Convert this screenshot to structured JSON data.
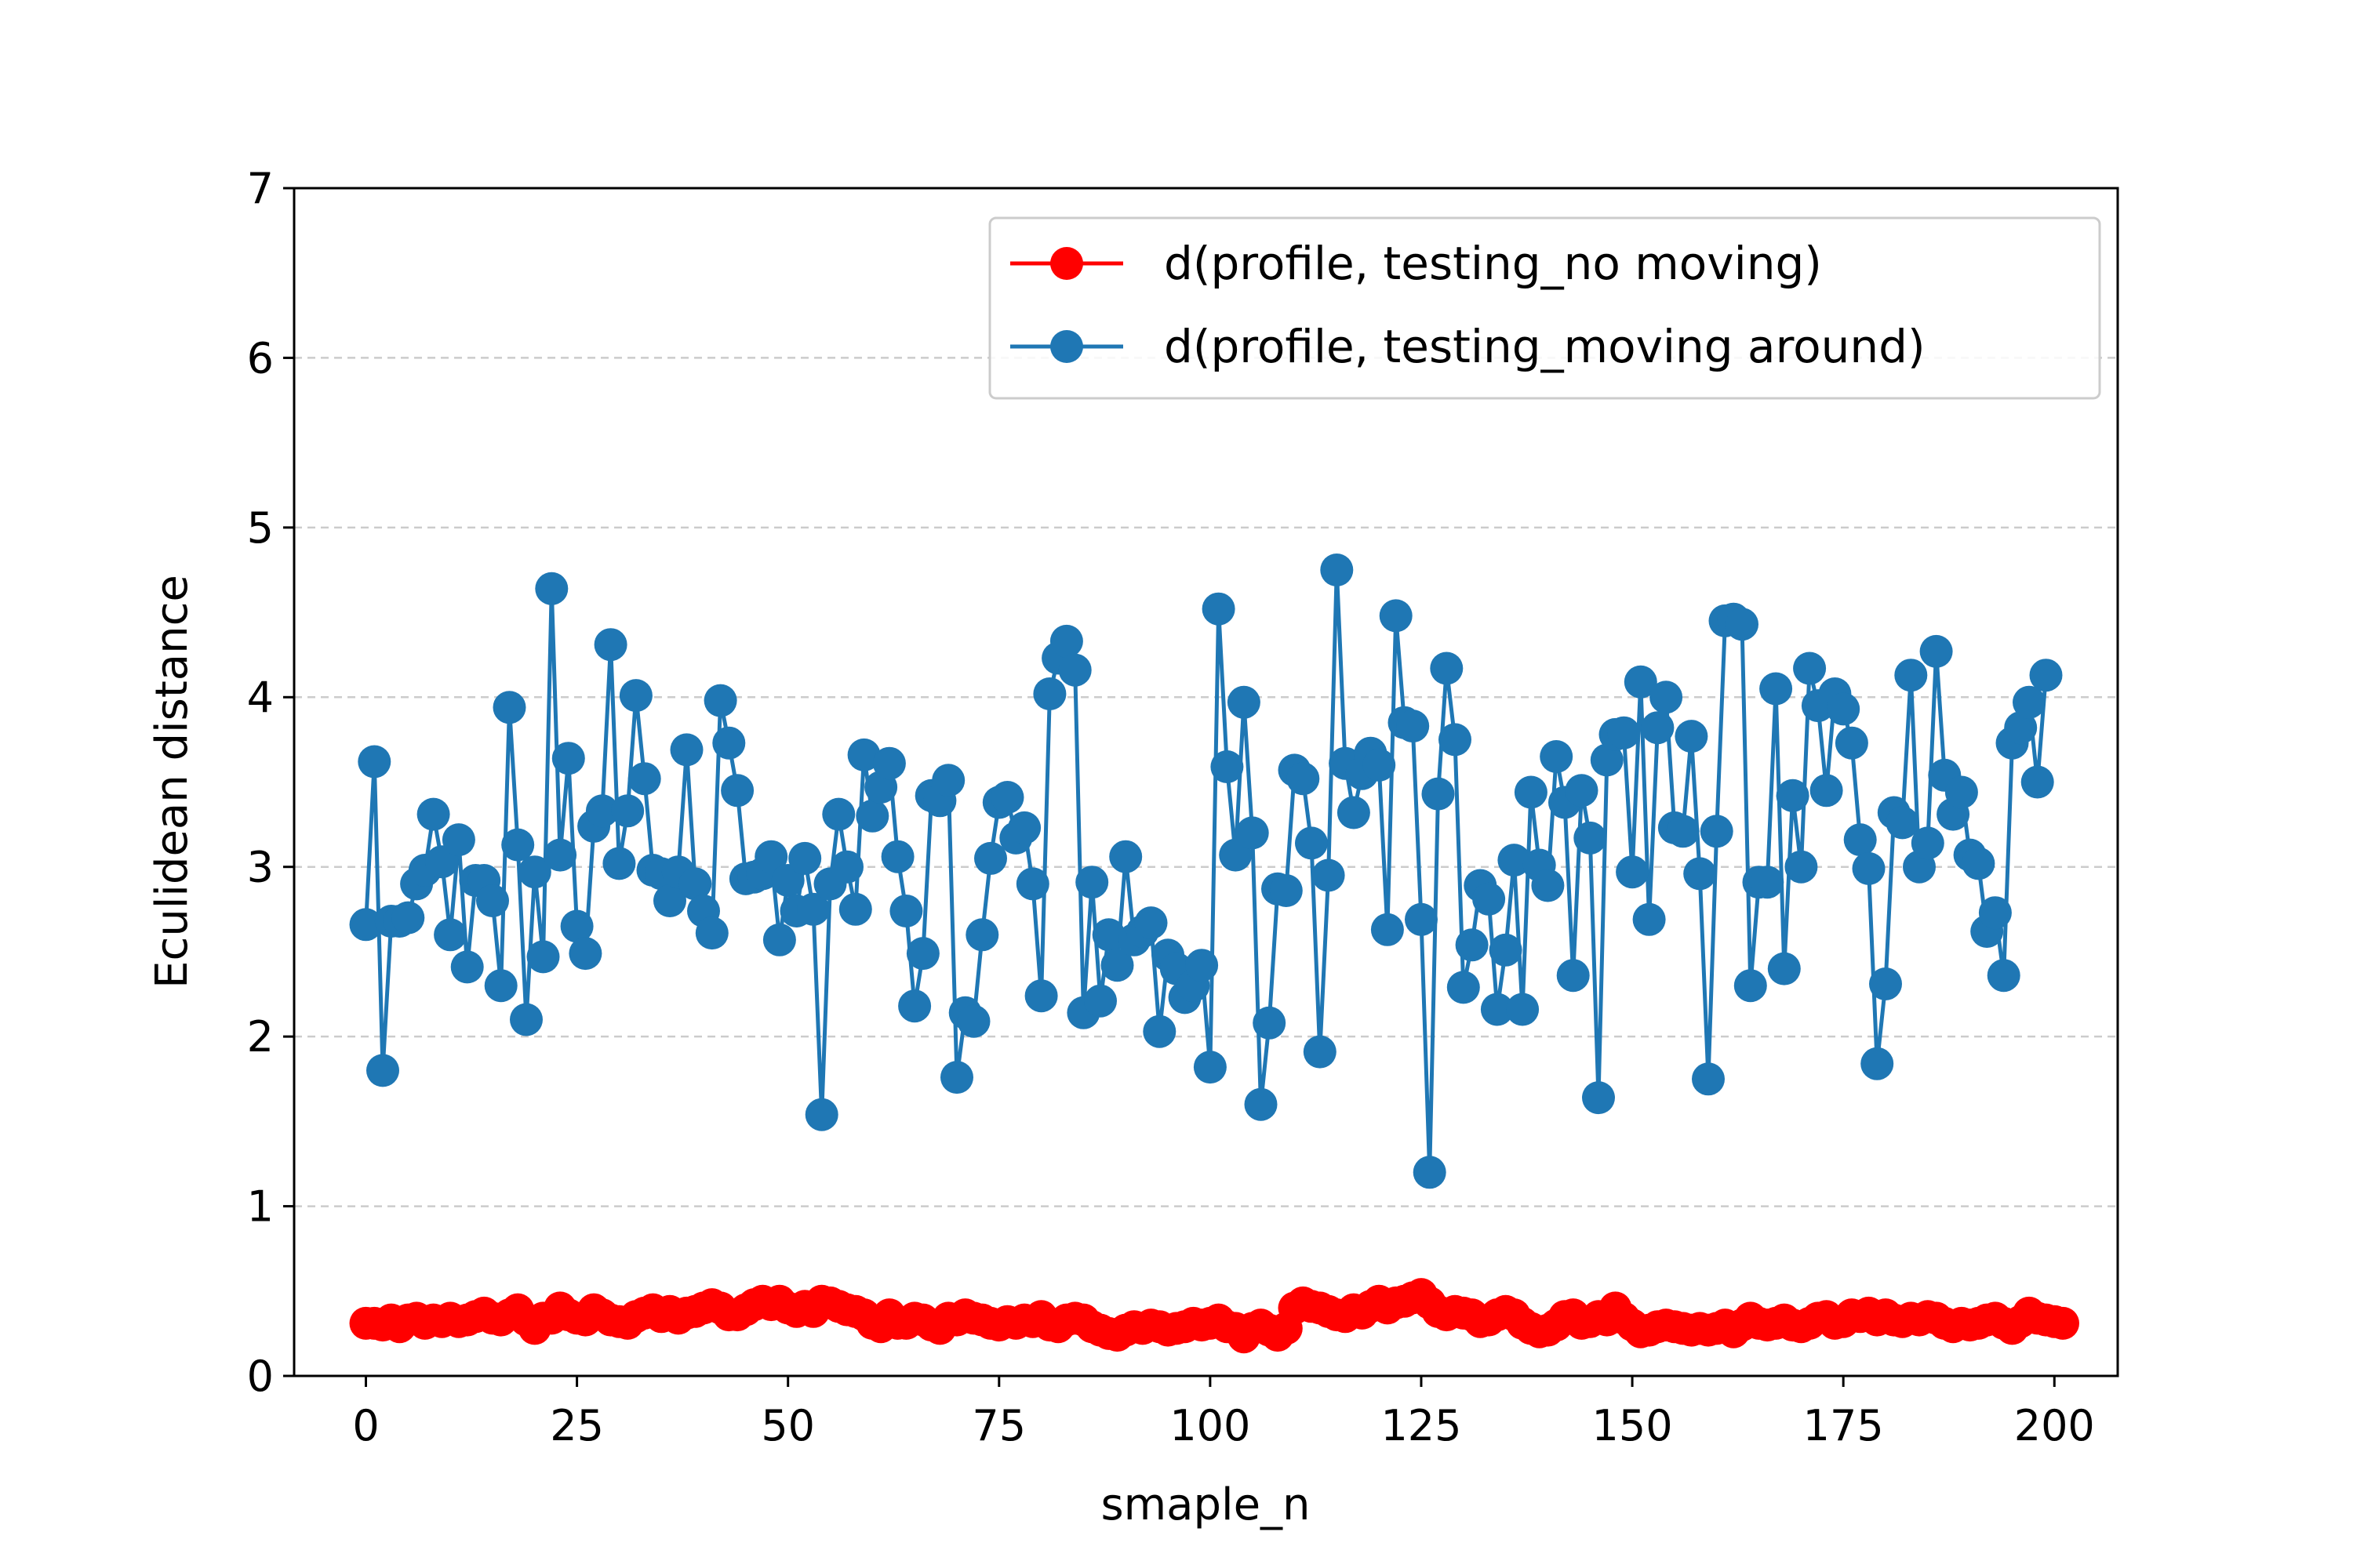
{
  "chart_data": {
    "type": "line",
    "title": "",
    "xlabel": "smaple_n",
    "ylabel": "Eculidean distance",
    "xlim": [
      -8.5,
      207.5
    ],
    "ylim": [
      0,
      7
    ],
    "xticks": [
      0,
      25,
      50,
      75,
      100,
      125,
      150,
      175,
      200
    ],
    "yticks": [
      0,
      1,
      2,
      3,
      4,
      5,
      6,
      7
    ],
    "xtick_labels": [
      "0",
      "25",
      "50",
      "75",
      "100",
      "125",
      "150",
      "175",
      "200"
    ],
    "ytick_labels": [
      "0",
      "1",
      "2",
      "3",
      "4",
      "5",
      "6",
      "7"
    ],
    "grid": "horizontal dashed",
    "legend_position": "top-right",
    "series": [
      {
        "name": "d(profile, testing_no moving)",
        "color": "#ff0000",
        "marker": "circle",
        "x_start": 0,
        "values": [
          0.31,
          0.31,
          0.3,
          0.33,
          0.29,
          0.33,
          0.34,
          0.31,
          0.33,
          0.32,
          0.34,
          0.32,
          0.33,
          0.35,
          0.37,
          0.34,
          0.33,
          0.36,
          0.39,
          0.33,
          0.28,
          0.34,
          0.34,
          0.4,
          0.36,
          0.34,
          0.33,
          0.39,
          0.36,
          0.33,
          0.32,
          0.31,
          0.35,
          0.37,
          0.39,
          0.35,
          0.38,
          0.34,
          0.37,
          0.38,
          0.4,
          0.42,
          0.4,
          0.36,
          0.36,
          0.39,
          0.42,
          0.44,
          0.42,
          0.44,
          0.4,
          0.38,
          0.41,
          0.38,
          0.44,
          0.43,
          0.41,
          0.39,
          0.38,
          0.36,
          0.31,
          0.29,
          0.36,
          0.31,
          0.31,
          0.34,
          0.33,
          0.3,
          0.28,
          0.34,
          0.33,
          0.36,
          0.34,
          0.33,
          0.31,
          0.3,
          0.32,
          0.31,
          0.33,
          0.32,
          0.35,
          0.3,
          0.29,
          0.33,
          0.34,
          0.33,
          0.29,
          0.27,
          0.25,
          0.24,
          0.27,
          0.29,
          0.28,
          0.3,
          0.29,
          0.27,
          0.28,
          0.29,
          0.31,
          0.3,
          0.31,
          0.33,
          0.29,
          0.28,
          0.23,
          0.28,
          0.3,
          0.27,
          0.24,
          0.28,
          0.4,
          0.43,
          0.41,
          0.4,
          0.38,
          0.36,
          0.35,
          0.39,
          0.37,
          0.41,
          0.44,
          0.4,
          0.43,
          0.44,
          0.46,
          0.48,
          0.43,
          0.38,
          0.36,
          0.38,
          0.37,
          0.36,
          0.32,
          0.33,
          0.36,
          0.38,
          0.36,
          0.31,
          0.28,
          0.26,
          0.27,
          0.3,
          0.35,
          0.36,
          0.31,
          0.32,
          0.35,
          0.33,
          0.4,
          0.34,
          0.3,
          0.26,
          0.27,
          0.29,
          0.3,
          0.29,
          0.28,
          0.27,
          0.28,
          0.27,
          0.28,
          0.3,
          0.26,
          0.3,
          0.34,
          0.31,
          0.3,
          0.31,
          0.33,
          0.3,
          0.29,
          0.31,
          0.34,
          0.35,
          0.31,
          0.32,
          0.36,
          0.35,
          0.37,
          0.33,
          0.36,
          0.33,
          0.32,
          0.34,
          0.33,
          0.35,
          0.34,
          0.31,
          0.29,
          0.31,
          0.3,
          0.31,
          0.33,
          0.34,
          0.31,
          0.28,
          0.32,
          0.37,
          0.34,
          0.33,
          0.32,
          0.31
        ]
      },
      {
        "name": "d(profile, testing_moving around)",
        "color": "#1f77b4",
        "marker": "circle",
        "x_start": 0,
        "values": [
          2.66,
          3.62,
          1.8,
          2.68,
          2.68,
          2.7,
          2.9,
          2.98,
          3.31,
          3.03,
          2.6,
          3.16,
          2.41,
          2.92,
          2.92,
          2.8,
          2.3,
          3.94,
          3.13,
          2.1,
          2.97,
          2.47,
          4.64,
          3.07,
          3.64,
          2.65,
          2.49,
          3.24,
          3.33,
          4.31,
          3.02,
          3.33,
          4.01,
          3.52,
          2.98,
          2.96,
          2.8,
          2.97,
          3.69,
          2.9,
          2.74,
          2.61,
          3.98,
          3.73,
          3.45,
          2.93,
          2.94,
          2.96,
          3.06,
          2.57,
          2.92,
          2.74,
          3.05,
          2.75,
          1.54,
          2.9,
          3.31,
          3.0,
          2.75,
          3.66,
          3.3,
          3.47,
          3.61,
          3.06,
          2.74,
          2.18,
          2.49,
          3.42,
          3.39,
          3.51,
          1.76,
          2.14,
          2.09,
          2.6,
          3.05,
          3.38,
          3.41,
          3.17,
          3.23,
          2.9,
          2.24,
          4.02,
          4.23,
          4.33,
          4.16,
          2.14,
          2.91,
          2.21,
          2.6,
          2.42,
          3.06,
          2.57,
          2.62,
          2.67,
          2.03,
          2.48,
          2.4,
          2.23,
          2.3,
          2.42,
          1.82,
          4.52,
          3.59,
          3.07,
          3.97,
          3.2,
          1.6,
          2.08,
          2.87,
          2.86,
          3.57,
          3.52,
          3.14,
          1.91,
          2.95,
          4.75,
          3.61,
          3.32,
          3.55,
          3.67,
          3.6,
          2.63,
          4.48,
          3.85,
          3.83,
          2.69,
          1.2,
          3.43,
          4.17,
          3.75,
          2.29,
          2.54,
          2.89,
          2.81,
          2.16,
          2.51,
          3.04,
          2.16,
          3.44,
          3.01,
          2.89,
          3.65,
          3.38,
          2.36,
          3.45,
          3.17,
          1.64,
          3.63,
          3.78,
          3.79,
          2.97,
          4.09,
          2.69,
          3.82,
          4.0,
          3.23,
          3.21,
          3.77,
          2.96,
          1.75,
          3.21,
          4.45,
          4.46,
          4.43,
          2.3,
          2.91,
          2.91,
          4.05,
          2.4,
          3.42,
          3.0,
          4.17,
          3.95,
          3.45,
          4.02,
          3.93,
          3.73,
          3.16,
          2.99,
          1.84,
          2.31,
          3.32,
          3.26,
          4.13,
          3.0,
          3.14,
          4.27,
          3.54,
          3.31,
          3.44,
          3.07,
          3.02,
          2.62,
          2.73,
          2.36,
          3.73,
          3.82,
          3.97,
          3.5,
          4.13
        ]
      }
    ]
  },
  "colors": {
    "grid": "#cccccc",
    "axes": "#000000",
    "legend_border": "#cccccc"
  }
}
